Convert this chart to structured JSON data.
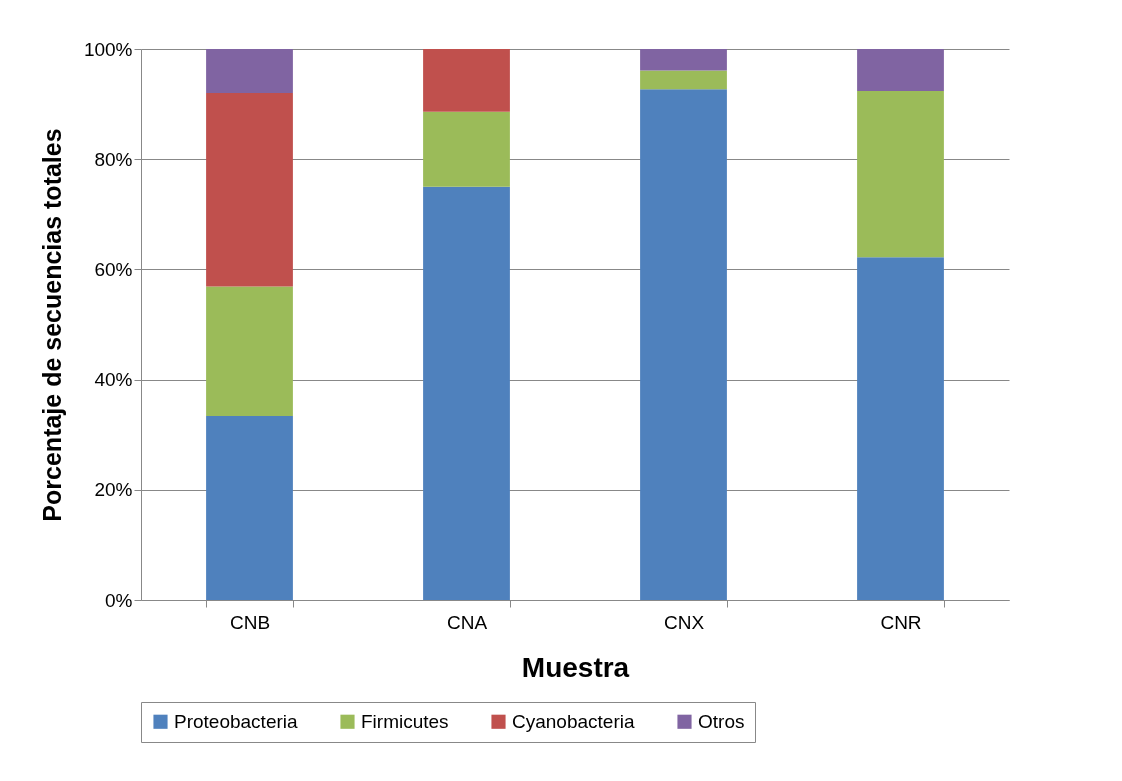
{
  "chart_data": {
    "type": "bar",
    "stacked": true,
    "xlabel": "Muestra",
    "ylabel": "Porcentaje de secuencias totales",
    "categories": [
      "CNB",
      "CNA",
      "CNX",
      "CNR"
    ],
    "series": [
      {
        "name": "Proteobacteria",
        "color": "#4f81bd",
        "values": [
          33.4,
          75.0,
          92.7,
          62.2
        ]
      },
      {
        "name": "Firmicutes",
        "color": "#9bbb59",
        "values": [
          23.5,
          13.6,
          3.4,
          30.2
        ]
      },
      {
        "name": "Cyanobacteria",
        "color": "#c0504d",
        "values": [
          35.1,
          11.4,
          0,
          0
        ]
      },
      {
        "name": "Otros",
        "color": "#8064a2",
        "values": [
          8.0,
          0,
          3.9,
          7.6
        ]
      }
    ],
    "ylim": [
      0,
      100
    ],
    "yticks": [
      {
        "value": 0,
        "label": "0%"
      },
      {
        "value": 20,
        "label": "20%"
      },
      {
        "value": 40,
        "label": "40%"
      },
      {
        "value": 60,
        "label": "60%"
      },
      {
        "value": 80,
        "label": "80%"
      },
      {
        "value": 100,
        "label": "100%"
      }
    ],
    "grid": "y",
    "legend": "bottom"
  }
}
